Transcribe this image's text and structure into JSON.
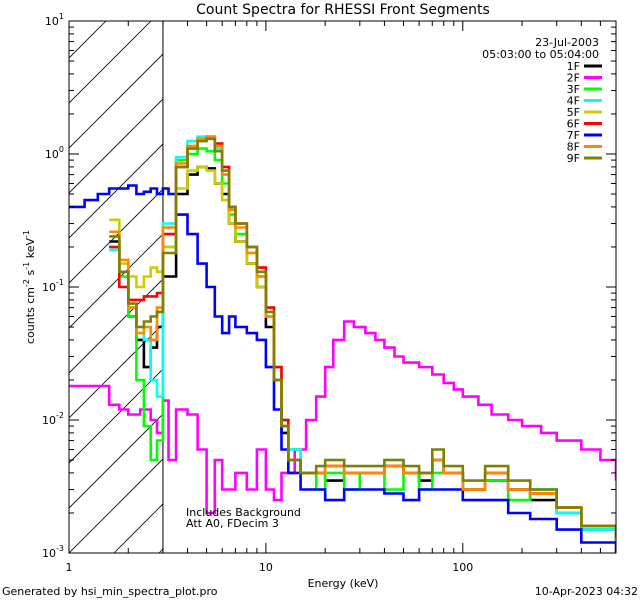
{
  "chart_data": {
    "type": "line",
    "title": "Count Spectra for RHESSI Front Segments",
    "xlabel": "Energy (keV)",
    "ylabel": "counts cm",
    "ylabel_parts": {
      "base": "counts cm",
      "sup1": "-2",
      "mid": " s",
      "sup2": "-1",
      "mid2": " keV",
      "sup3": "-1"
    },
    "xscale": "log",
    "yscale": "log",
    "xlim": [
      1,
      600
    ],
    "ylim": [
      0.001,
      10
    ],
    "x_tick_labels": [
      {
        "value": 1,
        "label": "1"
      },
      {
        "value": 10,
        "label": "10"
      },
      {
        "value": 100,
        "label": "100"
      }
    ],
    "y_tick_labels": [
      {
        "value": 0.001,
        "base": "10",
        "exp": "-3"
      },
      {
        "value": 0.01,
        "base": "10",
        "exp": "-2"
      },
      {
        "value": 0.1,
        "base": "10",
        "exp": "-1"
      },
      {
        "value": 1,
        "base": "10",
        "exp": "0"
      },
      {
        "value": 10,
        "base": "10",
        "exp": "1"
      }
    ],
    "excluded_region_keV": [
      1,
      3
    ],
    "date": "23-Jul-2003",
    "time_range": "05:03:00 to 05:04:00",
    "notes": [
      "Includes Background",
      "Att A0, FDecim 3"
    ],
    "series": [
      {
        "name": "1F",
        "color": "#000000",
        "x": [
          1.6,
          1.8,
          2.0,
          2.2,
          2.4,
          2.6,
          2.8,
          3.0,
          3.5,
          4.0,
          4.5,
          5.0,
          5.5,
          6.0,
          6.5,
          7.0,
          8.0,
          9.0,
          10,
          11,
          12,
          13,
          15,
          18,
          20,
          25,
          30,
          40,
          50,
          60,
          70,
          80,
          100,
          130,
          170,
          220,
          300,
          400,
          600
        ],
        "y": [
          0.22,
          0.13,
          0.06,
          0.04,
          0.025,
          0.035,
          0.05,
          0.12,
          0.5,
          0.7,
          0.8,
          0.78,
          0.6,
          0.5,
          0.3,
          0.22,
          0.15,
          0.1,
          0.05,
          0.02,
          0.008,
          0.005,
          0.004,
          0.004,
          0.0035,
          0.004,
          0.004,
          0.0045,
          0.004,
          0.0035,
          0.005,
          0.004,
          0.003,
          0.0035,
          0.003,
          0.0025,
          0.002,
          0.0015,
          0.0012
        ]
      },
      {
        "name": "2F",
        "color": "#ff00ff",
        "x": [
          1.0,
          1.3,
          1.6,
          1.8,
          2.0,
          2.3,
          2.6,
          2.8,
          3.0,
          3.2,
          3.5,
          4.0,
          4.5,
          5.0,
          5.5,
          6.0,
          7.0,
          8.0,
          9.0,
          10,
          11,
          12,
          14,
          16,
          18,
          20,
          22,
          25,
          28,
          32,
          36,
          40,
          45,
          50,
          60,
          70,
          80,
          90,
          100,
          120,
          140,
          170,
          200,
          250,
          300,
          400,
          500,
          600
        ],
        "y": [
          0.018,
          0.018,
          0.013,
          0.012,
          0.011,
          0.012,
          0.01,
          0.008,
          0.014,
          0.005,
          0.012,
          0.011,
          0.006,
          0.002,
          0.005,
          0.003,
          0.004,
          0.003,
          0.006,
          0.003,
          0.0025,
          0.004,
          0.006,
          0.01,
          0.015,
          0.025,
          0.04,
          0.055,
          0.05,
          0.045,
          0.04,
          0.035,
          0.03,
          0.027,
          0.025,
          0.022,
          0.019,
          0.017,
          0.015,
          0.013,
          0.011,
          0.01,
          0.009,
          0.008,
          0.007,
          0.006,
          0.005,
          0.0035
        ]
      },
      {
        "name": "3F",
        "color": "#00ff00",
        "x": [
          1.6,
          1.8,
          2.0,
          2.2,
          2.4,
          2.6,
          2.8,
          3.0,
          3.5,
          4.0,
          4.5,
          5.0,
          5.5,
          6.0,
          6.5,
          7.0,
          8.0,
          9.0,
          10,
          11,
          12,
          13,
          15,
          18,
          20,
          25,
          30,
          40,
          50,
          60,
          70,
          80,
          100,
          130,
          170,
          220,
          300,
          400,
          600
        ],
        "y": [
          0.2,
          0.12,
          0.06,
          0.02,
          0.009,
          0.005,
          0.007,
          0.2,
          0.9,
          1.0,
          1.1,
          1.05,
          0.9,
          0.6,
          0.35,
          0.25,
          0.18,
          0.12,
          0.06,
          0.02,
          0.01,
          0.006,
          0.004,
          0.003,
          0.004,
          0.003,
          0.004,
          0.003,
          0.004,
          0.003,
          0.004,
          0.004,
          0.003,
          0.0035,
          0.0025,
          0.003,
          0.002,
          0.0015,
          0.0012
        ]
      },
      {
        "name": "4F",
        "color": "#00ffff",
        "x": [
          1.6,
          1.8,
          2.0,
          2.2,
          2.4,
          2.6,
          2.8,
          3.0,
          3.5,
          4.0,
          4.5,
          5.0,
          5.5,
          6.0,
          6.5,
          7.0,
          8.0,
          9.0,
          10,
          11,
          12,
          13,
          15,
          18,
          20,
          25,
          30,
          40,
          50,
          60,
          70,
          80,
          100,
          130,
          170,
          220,
          300,
          400,
          600
        ],
        "y": [
          0.19,
          0.1,
          0.07,
          0.05,
          0.04,
          0.02,
          0.015,
          0.3,
          0.95,
          1.25,
          1.35,
          1.3,
          1.1,
          0.7,
          0.4,
          0.3,
          0.2,
          0.12,
          0.07,
          0.025,
          0.01,
          0.006,
          0.004,
          0.004,
          0.005,
          0.004,
          0.004,
          0.005,
          0.004,
          0.004,
          0.005,
          0.004,
          0.003,
          0.004,
          0.003,
          0.003,
          0.002,
          0.0015,
          0.0012
        ]
      },
      {
        "name": "5F",
        "color": "#cccc00",
        "x": [
          1.6,
          1.8,
          2.0,
          2.2,
          2.4,
          2.6,
          2.8,
          3.0,
          3.5,
          4.0,
          4.5,
          5.0,
          5.5,
          6.0,
          6.5,
          7.0,
          8.0,
          9.0,
          10,
          11,
          12,
          13,
          15,
          18,
          20,
          25,
          30,
          40,
          50,
          60,
          70,
          80,
          100,
          130,
          170,
          220,
          300,
          400,
          600
        ],
        "y": [
          0.32,
          0.15,
          0.12,
          0.1,
          0.12,
          0.14,
          0.13,
          0.2,
          0.55,
          0.75,
          0.8,
          0.75,
          0.6,
          0.45,
          0.3,
          0.22,
          0.15,
          0.1,
          0.06,
          0.02,
          0.009,
          0.005,
          0.004,
          0.004,
          0.0045,
          0.004,
          0.004,
          0.0045,
          0.004,
          0.004,
          0.005,
          0.004,
          0.003,
          0.004,
          0.003,
          0.0028,
          0.0022,
          0.0016,
          0.0013
        ]
      },
      {
        "name": "6F",
        "color": "#ff0000",
        "x": [
          1.6,
          1.8,
          2.0,
          2.2,
          2.4,
          2.6,
          2.8,
          3.0,
          3.5,
          4.0,
          4.5,
          5.0,
          5.5,
          6.0,
          6.5,
          7.0,
          8.0,
          9.0,
          10,
          11,
          12,
          13,
          15,
          18,
          20,
          25,
          30,
          40,
          50,
          60,
          70,
          80,
          100,
          130,
          170,
          220,
          300,
          400,
          600
        ],
        "y": [
          0.2,
          0.1,
          0.08,
          0.08,
          0.085,
          0.085,
          0.09,
          0.25,
          0.8,
          1.1,
          1.3,
          1.35,
          1.2,
          0.8,
          0.4,
          0.3,
          0.2,
          0.14,
          0.07,
          0.025,
          0.01,
          0.005,
          0.004,
          0.004,
          0.0045,
          0.004,
          0.004,
          0.0045,
          0.004,
          0.004,
          0.005,
          0.004,
          0.003,
          0.004,
          0.003,
          0.0028,
          0.0022,
          0.0016,
          0.0013
        ]
      },
      {
        "name": "7F",
        "color": "#0000ff",
        "x": [
          1.0,
          1.2,
          1.4,
          1.6,
          1.8,
          2.0,
          2.2,
          2.4,
          2.6,
          2.8,
          3.0,
          3.2,
          3.5,
          4.0,
          4.5,
          5.0,
          5.5,
          6.0,
          6.5,
          7.0,
          8.0,
          9.0,
          10,
          11,
          12,
          13,
          15,
          18,
          20,
          25,
          30,
          40,
          50,
          60,
          70,
          80,
          100,
          130,
          170,
          220,
          300,
          400,
          600
        ],
        "y": [
          0.4,
          0.45,
          0.5,
          0.55,
          0.55,
          0.58,
          0.5,
          0.52,
          0.55,
          0.5,
          0.55,
          0.5,
          0.35,
          0.25,
          0.15,
          0.1,
          0.06,
          0.045,
          0.06,
          0.05,
          0.045,
          0.04,
          0.025,
          0.012,
          0.006,
          0.004,
          0.003,
          0.003,
          0.0025,
          0.003,
          0.003,
          0.0028,
          0.0025,
          0.003,
          0.003,
          0.003,
          0.0025,
          0.0025,
          0.002,
          0.0018,
          0.0015,
          0.0012,
          0.001
        ]
      },
      {
        "name": "8F",
        "color": "#ff8800",
        "x": [
          1.6,
          1.8,
          2.0,
          2.2,
          2.4,
          2.6,
          2.8,
          3.0,
          3.5,
          4.0,
          4.5,
          5.0,
          5.5,
          6.0,
          6.5,
          7.0,
          8.0,
          9.0,
          10,
          11,
          12,
          13,
          15,
          18,
          20,
          25,
          30,
          40,
          50,
          60,
          70,
          80,
          100,
          130,
          170,
          220,
          300,
          400,
          600
        ],
        "y": [
          0.26,
          0.16,
          0.07,
          0.045,
          0.05,
          0.04,
          0.07,
          0.28,
          0.85,
          1.15,
          1.3,
          1.35,
          1.15,
          0.7,
          0.38,
          0.28,
          0.18,
          0.12,
          0.06,
          0.02,
          0.009,
          0.005,
          0.004,
          0.004,
          0.0045,
          0.004,
          0.004,
          0.0045,
          0.004,
          0.004,
          0.005,
          0.004,
          0.003,
          0.004,
          0.003,
          0.0028,
          0.0022,
          0.0016,
          0.0013
        ]
      },
      {
        "name": "9F",
        "color": "#808000",
        "x": [
          1.6,
          1.8,
          2.0,
          2.2,
          2.4,
          2.6,
          2.8,
          3.0,
          3.5,
          4.0,
          4.5,
          5.0,
          5.5,
          6.0,
          6.5,
          7.0,
          8.0,
          9.0,
          10,
          11,
          12,
          13,
          15,
          18,
          20,
          25,
          30,
          40,
          50,
          60,
          70,
          80,
          100,
          130,
          170,
          220,
          300,
          400,
          600
        ],
        "y": [
          0.24,
          0.13,
          0.075,
          0.05,
          0.055,
          0.06,
          0.065,
          0.18,
          0.8,
          1.1,
          1.25,
          1.3,
          1.05,
          0.75,
          0.4,
          0.3,
          0.2,
          0.13,
          0.065,
          0.02,
          0.009,
          0.005,
          0.004,
          0.0045,
          0.005,
          0.0045,
          0.0045,
          0.005,
          0.0045,
          0.004,
          0.006,
          0.0045,
          0.0035,
          0.0045,
          0.0035,
          0.003,
          0.0022,
          0.0016,
          0.0013
        ]
      }
    ]
  },
  "footer": {
    "left": "Generated by hsi_min_spectra_plot.pro",
    "right": "10-Apr-2023 04:32"
  }
}
